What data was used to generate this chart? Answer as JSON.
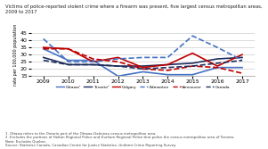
{
  "title": "Victims of police-reported violent crime where a firearm was present, five largest census metropolitan areas,\n2009 to 2017",
  "ylabel": "rate per 100,000 population",
  "years": [
    2009,
    2010,
    2011,
    2012,
    2013,
    2014,
    2015,
    2016,
    2017
  ],
  "series": {
    "Ottawa": {
      "values": [
        34,
        26,
        26,
        15,
        18,
        16,
        16,
        21,
        21
      ],
      "color": "#4472C4",
      "linestyle": "solid",
      "linewidth": 1.2
    },
    "Toronto": {
      "values": [
        28,
        23,
        23,
        22,
        22,
        23,
        24,
        27,
        28
      ],
      "color": "#1F2D5C",
      "linestyle": "solid",
      "linewidth": 1.2
    },
    "Calgary": {
      "values": [
        35,
        34,
        25,
        28,
        21,
        23,
        31,
        22,
        30
      ],
      "color": "#C00000",
      "linestyle": "solid",
      "linewidth": 1.2
    },
    "Edmonton": {
      "values": [
        41,
        25,
        25,
        27,
        28,
        28,
        43,
        35,
        26
      ],
      "color": "#4472C4",
      "linestyle": "dashed",
      "linewidth": 1.2
    },
    "Vancouver": {
      "values": [
        34,
        34,
        27,
        25,
        20,
        19,
        22,
        21,
        17
      ],
      "color": "#C00000",
      "linestyle": "dashed",
      "linewidth": 1.2
    },
    "Canada": {
      "values": [
        26,
        23,
        23,
        22,
        20,
        21,
        22,
        24,
        26
      ],
      "color": "#1F2D5C",
      "linestyle": "dashed",
      "linewidth": 1.2
    }
  },
  "ylim": [
    15,
    45
  ],
  "yticks": [
    15,
    20,
    25,
    30,
    35,
    40,
    45
  ],
  "bg_color": "#FFFFFF",
  "grid_color": "#CCCCCC",
  "footnote": "1. Ottawa refers to the Ontario part of the Ottawa-Gatineau census metropolitan area.\n2. Excludes the portions of Halton Regional Police and Durham Regional Police that police the census metropolitan area of Toronto.\nNote: Excludes Quebec.\nSource: Statistics Canada, Canadian Centre for Justice Statistics, Uniform Crime Reporting Survey."
}
